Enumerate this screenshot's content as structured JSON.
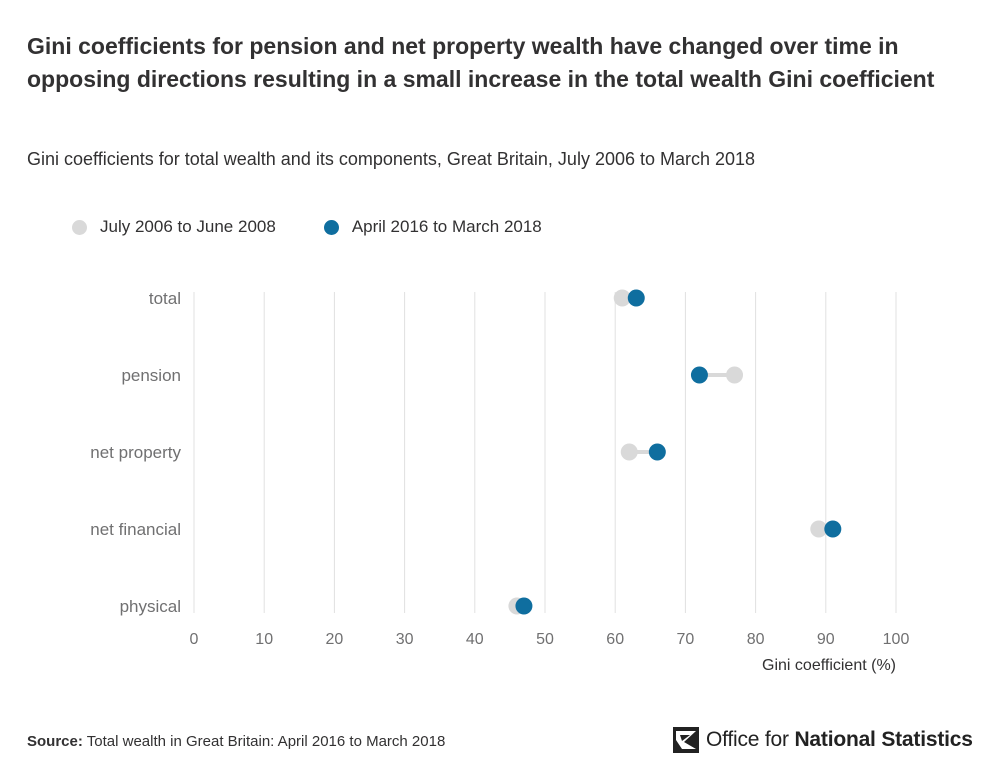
{
  "title": "Gini coefficients for pension and net property wealth have changed over time in opposing directions resulting in a small increase in the total wealth Gini coefficient",
  "subtitle": "Gini coefficients for total wealth and its components, Great Britain, July 2006 to March 2018",
  "legend": [
    {
      "label": "July 2006 to June 2008",
      "color": "#d9d9d9"
    },
    {
      "label": "April 2016 to March 2018",
      "color": "#0f6e9f"
    }
  ],
  "footer": {
    "source_label": "Source:",
    "source_text": " Total wealth in Great Britain: April 2016 to March 2018",
    "logo_text_regular": "Office for ",
    "logo_text_bold": "National Statistics"
  },
  "chart_data": {
    "type": "scatter",
    "subtype": "dumbbell",
    "categories": [
      "total",
      "pension",
      "net property",
      "net financial",
      "physical"
    ],
    "series": [
      {
        "name": "July 2006 to June 2008",
        "color": "#d9d9d9",
        "values": [
          61,
          77,
          62,
          89,
          46
        ]
      },
      {
        "name": "April 2016 to March 2018",
        "color": "#0f6e9f",
        "values": [
          63,
          72,
          66,
          91,
          47
        ]
      }
    ],
    "xlabel": "Gini coefficient (%)",
    "xlim": [
      0,
      100
    ],
    "xticks": [
      0,
      10,
      20,
      30,
      40,
      50,
      60,
      70,
      80,
      90,
      100
    ],
    "grid": true,
    "legend_position": "top-left"
  }
}
